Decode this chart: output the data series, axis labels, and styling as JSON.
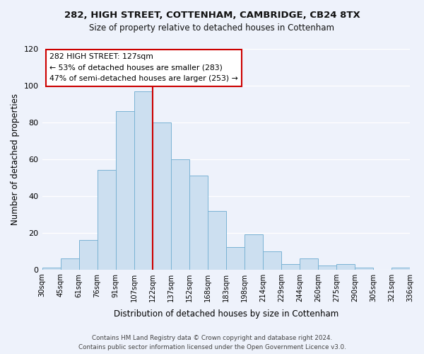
{
  "title_line1": "282, HIGH STREET, COTTENHAM, CAMBRIDGE, CB24 8TX",
  "title_line2": "Size of property relative to detached houses in Cottenham",
  "xlabel": "Distribution of detached houses by size in Cottenham",
  "ylabel": "Number of detached properties",
  "bin_labels": [
    "30sqm",
    "45sqm",
    "61sqm",
    "76sqm",
    "91sqm",
    "107sqm",
    "122sqm",
    "137sqm",
    "152sqm",
    "168sqm",
    "183sqm",
    "198sqm",
    "214sqm",
    "229sqm",
    "244sqm",
    "260sqm",
    "275sqm",
    "290sqm",
    "305sqm",
    "321sqm",
    "336sqm"
  ],
  "bar_heights": [
    1,
    6,
    16,
    54,
    86,
    97,
    80,
    60,
    51,
    32,
    12,
    19,
    10,
    3,
    6,
    2,
    3,
    1,
    0,
    1
  ],
  "bar_color": "#ccdff0",
  "bar_edge_color": "#7ab3d4",
  "vline_x": 6,
  "vline_color": "#cc0000",
  "annotation_title": "282 HIGH STREET: 127sqm",
  "annotation_line2": "← 53% of detached houses are smaller (283)",
  "annotation_line3": "47% of semi-detached houses are larger (253) →",
  "annotation_box_color": "#ffffff",
  "annotation_border_color": "#cc0000",
  "ylim": [
    0,
    120
  ],
  "yticks": [
    0,
    20,
    40,
    60,
    80,
    100,
    120
  ],
  "footer_line1": "Contains HM Land Registry data © Crown copyright and database right 2024.",
  "footer_line2": "Contains public sector information licensed under the Open Government Licence v3.0.",
  "bg_color": "#eef2fb",
  "plot_bg_color": "#eef2fb",
  "grid_color": "#ffffff"
}
